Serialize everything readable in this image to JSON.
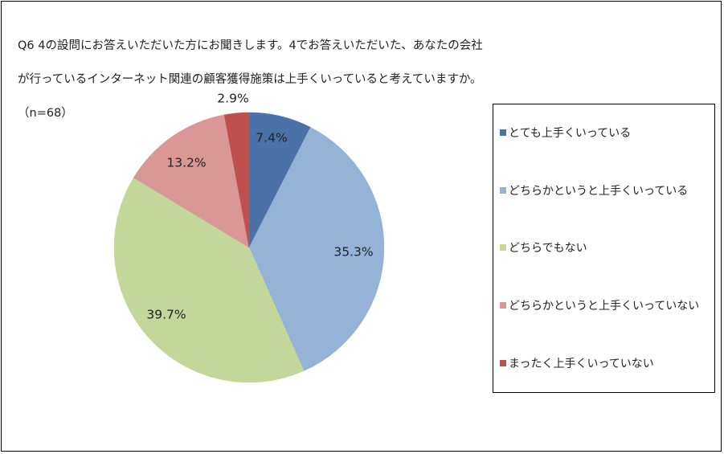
{
  "title": {
    "line1": "Q6 4の設問にお答えいただいた方にお聞きします。4でお答えいただいた、あなたの会社",
    "line2": "が行っているインターネット関連の顧客獲得施策は上手くいっていると考えていますか。",
    "line3": "（n=68）"
  },
  "chart_data": {
    "type": "pie",
    "title": "Q6 4の設問にお答えいただいた方にお聞きします。4でお答えいただいた、あなたの会社が行っているインターネット関連の顧客獲得施策は上手くいっていると考えていますか。（n=68）",
    "categories": [
      "とても上手くいっている",
      "どちらかというと上手くいっている",
      "どちらでもない",
      "どちらかというと上手くいっていない",
      "まったく上手くいっていない"
    ],
    "values": [
      7.4,
      35.3,
      39.7,
      13.2,
      2.9
    ],
    "labels": [
      "7.4%",
      "35.3%",
      "39.7%",
      "13.2%",
      "2.9%"
    ],
    "colors": [
      "#4a72a8",
      "#95b3d7",
      "#c4d79b",
      "#d99795",
      "#c0504d"
    ],
    "legend_position": "right"
  }
}
